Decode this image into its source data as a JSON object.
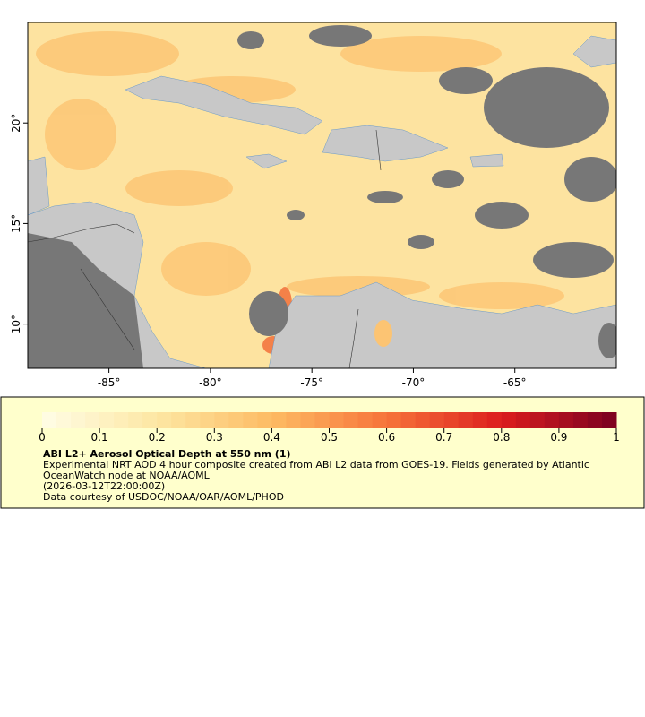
{
  "map": {
    "xlim": [
      -89,
      -60
    ],
    "ylim": [
      7.8,
      25
    ],
    "xticks": [
      {
        "value": -85,
        "label": "-85°"
      },
      {
        "value": -80,
        "label": "-80°"
      },
      {
        "value": -75,
        "label": "-75°"
      },
      {
        "value": -70,
        "label": "-70°"
      },
      {
        "value": -65,
        "label": "-65°"
      }
    ],
    "yticks": [
      {
        "value": 10,
        "label": "10°"
      },
      {
        "value": 15,
        "label": "15°"
      },
      {
        "value": 20,
        "label": "20°"
      }
    ]
  },
  "colorbar": {
    "range": [
      0,
      1
    ],
    "ticks": [
      0,
      0.1,
      0.2,
      0.3,
      0.4,
      0.5,
      0.6,
      0.7,
      0.8,
      0.9,
      1
    ],
    "colors": [
      "#fffde6",
      "#fde7a3",
      "#fdbb63",
      "#f7743a",
      "#dc1e1e",
      "#7a0020"
    ]
  },
  "legend": {
    "title": "ABI L2+ Aerosol Optical Depth at 550 nm (1)",
    "lines": [
      "Experimental NRT AOD 4 hour composite created from ABI L2 data from GOES-19. Fields generated by Atlantic",
      "OceanWatch node at NOAA/AOML",
      "(2026-03-12T22:00:00Z)",
      "Data courtesy of USDOC/NOAA/OAR/AOML/PHOD"
    ]
  }
}
